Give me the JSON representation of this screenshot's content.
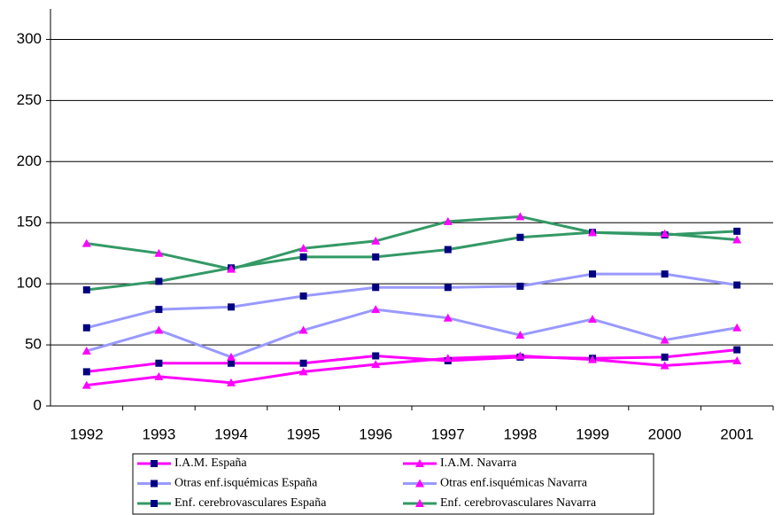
{
  "chart_data": {
    "type": "line",
    "categories": [
      "1992",
      "1993",
      "1994",
      "1995",
      "1996",
      "1997",
      "1998",
      "1999",
      "2000",
      "2001"
    ],
    "series": [
      {
        "name": "I.A.M. España",
        "color": "#ff00ff",
        "marker": "square",
        "marker_color": "#000080",
        "values": [
          28,
          35,
          35,
          35,
          41,
          37,
          40,
          39,
          40,
          46
        ]
      },
      {
        "name": "I.A.M. Navarra",
        "color": "#ff00ff",
        "marker": "triangle",
        "marker_color": "#ff00ff",
        "values": [
          17,
          24,
          19,
          28,
          34,
          39,
          41,
          38,
          33,
          37
        ]
      },
      {
        "name": "Otras enf.isquémicas España",
        "color": "#9999ff",
        "marker": "square",
        "marker_color": "#000080",
        "values": [
          64,
          79,
          81,
          90,
          97,
          97,
          98,
          108,
          108,
          99
        ]
      },
      {
        "name": "Otras enf.isquémicas Navarra",
        "color": "#9999ff",
        "marker": "triangle",
        "marker_color": "#ff00ff",
        "values": [
          45,
          62,
          40,
          62,
          79,
          72,
          58,
          71,
          54,
          64
        ]
      },
      {
        "name": "Enf. cerebrovasculares España",
        "color": "#339966",
        "marker": "square",
        "marker_color": "#000080",
        "values": [
          95,
          102,
          113,
          122,
          122,
          128,
          138,
          142,
          140,
          143
        ]
      },
      {
        "name": "Enf. cerebrovasculares Navarra",
        "color": "#339966",
        "marker": "triangle",
        "marker_color": "#ff00ff",
        "values": [
          133,
          125,
          112,
          129,
          135,
          151,
          155,
          142,
          141,
          136
        ]
      }
    ],
    "ylim": [
      0,
      325
    ],
    "yticks": [
      0,
      50,
      100,
      150,
      200,
      250,
      300
    ],
    "grid": true
  }
}
